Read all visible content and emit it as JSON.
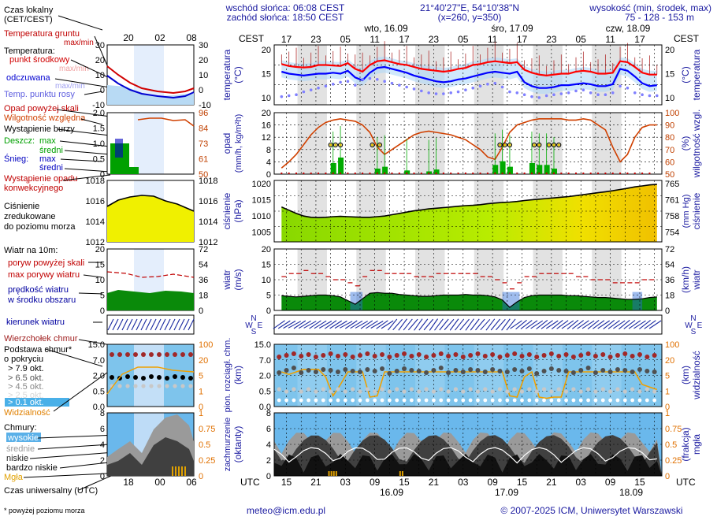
{
  "header": {
    "sunrise": "wschód słońca: 06:08 CEST",
    "sunset": "zachód słońca: 18:50 CEST",
    "coords": "21°40'27\"E, 54°10'38\"N",
    "grid": "(x=260, y=350)",
    "height_title": "wysokość (min, środek, max)",
    "height_values": "75 - 128 - 153 m"
  },
  "legend": {
    "time_local": "Czas lokalny",
    "time_local2": "(CET/CEST)",
    "ground_temp": "Temperatura gruntu",
    "maxmin": "max/min",
    "temperature": "Temperatura:",
    "mid": "punkt środkowy",
    "maxmin2": "max/min",
    "felt": "odczuwana",
    "maxmin3": "max/min",
    "dew": "Temp. punktu rosy",
    "rain_above": "Opad powyżej skali",
    "humidity": "Wilgotność względna",
    "storm": "Wystąpienie burzy",
    "rain": "Deszcz:",
    "max": "max",
    "avg": "średni",
    "snow": "Śnieg:",
    "max2": "max",
    "avg2": "średni",
    "conv": "Wystąpienie opadu",
    "conv2": "konwekcyjnego",
    "pressure": "Ciśnienie",
    "pressure2": "zredukowane",
    "pressure3": "do poziomu morza",
    "wind": "Wiatr na 10m:",
    "gust_above": "poryw powyżej skali",
    "gust": "max porywy wiatru",
    "wind_speed": "prędkość wiatru",
    "wind_area": "w środku obszaru",
    "wind_dir": "kierunek wiatru",
    "cloud_top": "Wierzchołek chmur",
    "cloud_base": "Podstawa chmur*",
    "cloud_base2": "o pokryciu",
    "okt1": "> 7.9 okt.",
    "okt2": "> 6.5 okt.",
    "okt3": "> 4.5 okt.",
    "okt4": "> 2.5 okt.",
    "okt5": "> 0.1 okt.",
    "visibility": "Widzialność",
    "clouds": "Chmury:",
    "high": "wysokie",
    "medium": "średnie",
    "low": "niskie",
    "very_low": "bardzo niskie",
    "fog": "Mgła",
    "utc_label": "Czas uniwersalny (UTC)",
    "footnote": "* powyżej poziomu morza"
  },
  "axes": {
    "cest": "CEST",
    "utc": "UTC",
    "temp_l": "temperatura",
    "temp_l2": "(°C)",
    "temp_r": "temperatura",
    "temp_r2": "(°C)",
    "rain_l": "opad",
    "rain_l2": "(mm/h, kg/m²h)",
    "hum_r": "wilgotność wzgl.",
    "hum_r2": "(%)",
    "pres_l": "ciśnienie",
    "pres_l2": "(hPa)",
    "pres_r": "ciśnienie",
    "pres_r2": "(mm Hg)",
    "wind_l": "wiatr",
    "wind_l2": "(m/s)",
    "wind_r": "wiatr",
    "wind_r2": "(km/h)",
    "cloud_l": "pion. rozciągł. chm.",
    "cloud_l2": "(km)",
    "vis_r": "widzialność",
    "vis_r2": "(km)",
    "cov_l": "zachmurzenie",
    "cov_l2": "(oktanty)",
    "cov_r": "mgła",
    "cov_r2": "(frakcja)",
    "day1": "wto, 16.09",
    "day2": "śro, 17.09",
    "day3": "czw, 18.09",
    "utc_day1": "16.09",
    "utc_day2": "17.09",
    "utc_day3": "18.09",
    "cest_ticks": [
      "17",
      "23",
      "05",
      "11",
      "17",
      "23",
      "05",
      "11",
      "17",
      "23",
      "05",
      "11",
      "17"
    ],
    "utc_ticks": [
      "15",
      "21",
      "03",
      "09",
      "15",
      "21",
      "03",
      "09",
      "15",
      "21",
      "03",
      "09",
      "15"
    ],
    "small_cest_ticks": [
      "20",
      "02",
      "08"
    ],
    "small_utc_ticks": [
      "18",
      "00",
      "06"
    ],
    "temp_ticks": [
      "20",
      "15",
      "10"
    ],
    "rain_ticks": [
      "20",
      "16",
      "12",
      "8",
      "4",
      "0"
    ],
    "hum_ticks": [
      "100",
      "90",
      "80",
      "70",
      "60",
      "50"
    ],
    "pres_ticks": [
      "1020",
      "1015",
      "1010",
      "1005"
    ],
    "mmhg_ticks": [
      "765",
      "761",
      "758",
      "754"
    ],
    "wind_ticks": [
      "20",
      "15",
      "10",
      "5",
      "0"
    ],
    "kmh_ticks": [
      "72",
      "54",
      "36",
      "18",
      "0"
    ],
    "cloud_ticks": [
      "15.0",
      "7.0",
      "2.0",
      "0.5",
      "0.0"
    ],
    "vis_ticks": [
      "100",
      "20",
      "5",
      "1",
      "0"
    ],
    "cov_ticks": [
      "8",
      "6",
      "4",
      "2",
      "0"
    ],
    "fog_ticks": [
      "1",
      "0.75",
      "0.5",
      "0.25",
      "0"
    ],
    "compass": [
      "N",
      "W",
      "E",
      "S"
    ],
    "small_temp_ticks": [
      "30",
      "20",
      "10",
      "0",
      "-10"
    ],
    "small_rain_ticks": [
      "2.0",
      "1.5",
      "1.0",
      "0.5",
      "0"
    ],
    "small_hum_ticks": [
      "96",
      "84",
      "73",
      "61",
      "50"
    ],
    "small_pres_ticks": [
      "1018",
      "1016",
      "1014",
      "1012"
    ],
    "small_wind_ticks": [
      "20",
      "15",
      "10",
      "5",
      "0"
    ],
    "small_kmh_ticks": [
      "72",
      "54",
      "36",
      "18",
      "0"
    ],
    "small_cloud_ticks": [
      "15.0",
      "7.0",
      "2.0",
      "0.5",
      "0.0"
    ],
    "small_vis_ticks": [
      "100",
      "20",
      "5",
      "1",
      "0"
    ],
    "small_cov_ticks": [
      "8",
      "6",
      "4",
      "2",
      "0"
    ],
    "small_fog_ticks": [
      "1",
      "0.75",
      "0.5",
      "0.25",
      "0"
    ]
  },
  "footer": {
    "email": "meteo@icm.edu.pl",
    "copyright": "© 2007-2025 ICM, Uniwersytet Warszawski"
  },
  "colors": {
    "grid_bg": "#ffffff",
    "night": "#e0e0e0",
    "temp_mid": "#ff0000",
    "temp_felt": "#0000ff",
    "dew": "#8080ff",
    "humidity": "#d04000",
    "rain": "#00aa00",
    "pressure_fill": "#c0f000",
    "wind_fill": "#0a8a0a",
    "cloud_bg": "#7ec4ec",
    "visibility": "#f0a000",
    "cov_dark": "#404040"
  },
  "chart_data": [
    {
      "type": "line",
      "title": "temperatura",
      "ylabel": "(°C)",
      "ylim": [
        8,
        21
      ],
      "x": [
        15,
        18,
        21,
        24,
        27,
        30,
        33,
        36,
        39,
        42,
        45,
        48,
        51,
        54,
        57,
        60,
        63,
        66,
        69,
        72,
        75,
        78,
        81,
        84,
        87,
        90,
        93,
        96,
        99,
        102,
        105,
        108,
        111,
        114,
        117,
        120,
        123,
        126,
        129,
        132,
        135,
        138,
        141,
        144,
        147,
        150,
        153,
        156,
        159,
        162,
        165,
        168
      ],
      "series": [
        {
          "name": "punkt środkowy",
          "values": [
            17.0,
            16.6,
            16.4,
            16.3,
            16.4,
            16.8,
            16.8,
            16.7,
            16.6,
            17.2,
            16.0,
            15.4,
            16.8,
            17.6,
            17.8,
            17.4,
            17.0,
            16.8,
            16.4,
            16.0,
            15.8,
            15.6,
            15.4,
            15.6,
            16.0,
            16.2,
            16.8,
            17.0,
            17.4,
            17.6,
            17.4,
            17.2,
            17.4,
            15.8,
            15.2,
            14.8,
            14.6,
            14.8,
            15.0,
            15.0,
            15.4,
            15.6,
            15.4,
            15.0,
            15.0,
            15.2,
            17.6,
            17.4,
            16.4,
            15.2,
            14.8,
            14.8
          ]
        },
        {
          "name": "odczuwana",
          "values": [
            15.4,
            15.0,
            14.8,
            14.6,
            14.8,
            15.0,
            15.0,
            15.2,
            15.0,
            15.6,
            14.2,
            13.6,
            15.2,
            16.2,
            16.4,
            16.0,
            15.6,
            15.2,
            14.6,
            14.2,
            13.8,
            13.4,
            13.2,
            13.4,
            13.8,
            14.0,
            14.4,
            14.8,
            15.2,
            15.4,
            15.2,
            15.0,
            15.4,
            13.2,
            12.4,
            12.0,
            12.0,
            12.2,
            12.6,
            12.6,
            12.8,
            13.0,
            12.8,
            12.4,
            12.4,
            12.8,
            16.0,
            15.6,
            14.4,
            13.0,
            12.4,
            12.6
          ]
        },
        {
          "name": "Temp. punktu rosy",
          "values": [
            10.2,
            10.4,
            10.6,
            11.2,
            11.6,
            12.0,
            12.4,
            12.8,
            13.2,
            13.4,
            12.6,
            13.8,
            14.0,
            13.8,
            13.4,
            13.0,
            12.6,
            12.2,
            11.8,
            11.4,
            11.0,
            10.8,
            10.8,
            11.0,
            11.2,
            11.6,
            12.0,
            12.4,
            12.8,
            13.0,
            12.2,
            11.2,
            11.0,
            10.6,
            10.2,
            10.0,
            10.4,
            10.6,
            10.8,
            11.0,
            11.4,
            11.6,
            11.0,
            10.6,
            10.6,
            11.0,
            12.4,
            12.0,
            11.0,
            10.6,
            10.4,
            10.4
          ]
        }
      ]
    },
    {
      "type": "line",
      "title": "wilgotność wzgl.",
      "ylabel": "(%)",
      "ylim": [
        50,
        100
      ],
      "x": [
        15,
        18,
        21,
        24,
        27,
        30,
        33,
        36,
        39,
        42,
        45,
        48,
        51,
        54,
        57,
        60,
        63,
        66,
        69,
        72,
        75,
        78,
        81,
        84,
        87,
        90,
        93,
        96,
        99,
        102,
        105,
        108,
        111,
        114,
        117,
        120,
        123,
        126,
        129,
        132,
        135,
        138,
        141,
        144,
        147,
        150,
        153,
        156,
        159,
        162,
        165,
        168
      ],
      "series": [
        {
          "name": "Wilgotność względna",
          "values": [
            55,
            60,
            66,
            74,
            82,
            88,
            92,
            94,
            95,
            94,
            93,
            90,
            84,
            72,
            66,
            70,
            74,
            78,
            82,
            84,
            85,
            84,
            83,
            82,
            80,
            78,
            74,
            70,
            64,
            62,
            72,
            84,
            90,
            92,
            94,
            95,
            95,
            95,
            95,
            94,
            94,
            95,
            94,
            90,
            86,
            72,
            60,
            66,
            80,
            88,
            90,
            90
          ]
        }
      ]
    },
    {
      "type": "area",
      "title": "ciśnienie",
      "ylabel": "(hPa)",
      "ylim": [
        1002,
        1021
      ],
      "x": [
        15,
        18,
        21,
        24,
        27,
        30,
        33,
        36,
        39,
        42,
        45,
        48,
        51,
        54,
        57,
        60,
        63,
        66,
        69,
        72,
        75,
        78,
        81,
        84,
        87,
        90,
        93,
        96,
        99,
        102,
        105,
        108,
        111,
        114,
        117,
        120,
        123,
        126,
        129,
        132,
        135,
        138,
        141,
        144,
        147,
        150,
        153,
        156,
        159,
        162,
        165,
        168
      ],
      "series": [
        {
          "name": "Ciśnienie",
          "values": [
            1012.8,
            1011.8,
            1010.8,
            1010.0,
            1009.6,
            1009.5,
            1009.6,
            1009.8,
            1009.9,
            1009.8,
            1009.7,
            1009.6,
            1009.6,
            1009.8,
            1010.0,
            1010.4,
            1010.8,
            1011.2,
            1011.6,
            1011.9,
            1012.2,
            1012.4,
            1012.6,
            1012.8,
            1013.0,
            1013.2,
            1013.3,
            1013.5,
            1013.8,
            1014.0,
            1014.2,
            1014.3,
            1014.5,
            1014.8,
            1015.0,
            1015.2,
            1015.4,
            1015.6,
            1015.8,
            1016.0,
            1016.3,
            1016.6,
            1016.9,
            1017.2,
            1017.5,
            1017.8,
            1018.2,
            1018.6,
            1019.0,
            1019.3,
            1019.6,
            1019.8
          ]
        }
      ]
    },
    {
      "type": "area",
      "title": "wiatr",
      "ylabel": "(m/s)",
      "ylim": [
        0,
        20
      ],
      "x": [
        15,
        18,
        21,
        24,
        27,
        30,
        33,
        36,
        39,
        42,
        45,
        48,
        51,
        54,
        57,
        60,
        63,
        66,
        69,
        72,
        75,
        78,
        81,
        84,
        87,
        90,
        93,
        96,
        99,
        102,
        105,
        108,
        111,
        114,
        117,
        120,
        123,
        126,
        129,
        132,
        135,
        138,
        141,
        144,
        147,
        150,
        153,
        156,
        159,
        162,
        165,
        168
      ],
      "series": [
        {
          "name": "prędkość wiatru",
          "values": [
            4.8,
            4.6,
            4.4,
            4.6,
            4.8,
            5.0,
            5.0,
            4.8,
            4.4,
            3.2,
            2.0,
            3.8,
            5.6,
            5.8,
            5.6,
            5.6,
            5.2,
            5.0,
            4.8,
            4.6,
            4.6,
            4.8,
            5.0,
            5.0,
            5.0,
            5.2,
            5.0,
            5.0,
            4.8,
            4.4,
            3.4,
            1.0,
            2.8,
            4.2,
            4.8,
            5.0,
            5.0,
            5.0,
            5.0,
            4.8,
            4.8,
            4.6,
            4.4,
            4.2,
            4.2,
            4.0,
            3.8,
            3.6,
            3.6,
            3.8,
            4.2,
            4.4
          ]
        },
        {
          "name": "max porywy wiatru",
          "values": [
            11,
            12,
            12,
            13,
            12,
            12,
            11,
            10,
            10,
            9,
            8,
            11,
            13,
            13,
            12,
            12,
            12,
            12,
            11,
            11,
            11,
            12,
            12,
            12,
            12,
            12,
            12,
            11,
            11,
            10,
            9,
            7,
            9,
            11,
            11,
            12,
            12,
            12,
            12,
            12,
            11,
            11,
            10,
            10,
            10,
            9,
            9,
            9,
            9,
            10,
            10,
            10
          ]
        }
      ]
    },
    {
      "type": "bar",
      "title": "opad",
      "ylabel": "(mm/h, kg/m²h)",
      "ylim": [
        0,
        20
      ],
      "categories": [
        "36",
        "39",
        "54",
        "57",
        "66",
        "75",
        "78",
        "102",
        "105",
        "108",
        "117",
        "120",
        "123",
        "126"
      ],
      "values": [
        1.2,
        1.8,
        0.6,
        0.8,
        0.4,
        0.3,
        0.5,
        1.0,
        1.4,
        0.8,
        1.2,
        1.0,
        1.0,
        0.6
      ]
    },
    {
      "type": "line",
      "title": "widzialność",
      "ylabel": "(km)",
      "ylim": [
        0,
        100
      ],
      "x": [
        15,
        18,
        21,
        24,
        27,
        30,
        33,
        36,
        39,
        42,
        45,
        48,
        51,
        54,
        57,
        60,
        63,
        66,
        69,
        72,
        75,
        78,
        81,
        84,
        87,
        90,
        93,
        96,
        99,
        102,
        105,
        108,
        111,
        114,
        117,
        120,
        123,
        126,
        129,
        132,
        135,
        138,
        141,
        144,
        147,
        150,
        153,
        156,
        159,
        162,
        165,
        168
      ],
      "series": [
        {
          "name": "Widzialność",
          "values": [
            22,
            20,
            22,
            24,
            24,
            24,
            18,
            3,
            12,
            22,
            22,
            22,
            2,
            3,
            22,
            22,
            22,
            22,
            22,
            22,
            22,
            22,
            22,
            22,
            22,
            22,
            22,
            22,
            22,
            22,
            22,
            3,
            2,
            18,
            22,
            2,
            1,
            2,
            2,
            22,
            22,
            22,
            22,
            22,
            22,
            22,
            22,
            22,
            22,
            12,
            10,
            8
          ]
        }
      ]
    }
  ]
}
